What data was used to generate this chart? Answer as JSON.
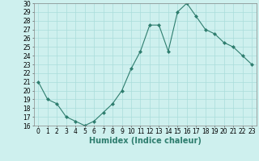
{
  "x": [
    0,
    1,
    2,
    3,
    4,
    5,
    6,
    7,
    8,
    9,
    10,
    11,
    12,
    13,
    14,
    15,
    16,
    17,
    18,
    19,
    20,
    21,
    22,
    23
  ],
  "y": [
    21,
    19,
    18.5,
    17,
    16.5,
    16,
    16.5,
    17.5,
    18.5,
    20,
    22.5,
    24.5,
    27.5,
    27.5,
    24.5,
    29,
    30,
    28.5,
    27,
    26.5,
    25.5,
    25,
    24,
    23
  ],
  "line_color": "#2e7d6e",
  "marker": "D",
  "marker_size": 2,
  "bg_color": "#cef0ee",
  "grid_color": "#aaddda",
  "xlabel": "Humidex (Indice chaleur)",
  "xlim": [
    -0.5,
    23.5
  ],
  "ylim": [
    16,
    30
  ],
  "yticks": [
    16,
    17,
    18,
    19,
    20,
    21,
    22,
    23,
    24,
    25,
    26,
    27,
    28,
    29,
    30
  ],
  "xticks": [
    0,
    1,
    2,
    3,
    4,
    5,
    6,
    7,
    8,
    9,
    10,
    11,
    12,
    13,
    14,
    15,
    16,
    17,
    18,
    19,
    20,
    21,
    22,
    23
  ],
  "xlabel_color": "#2e7d6e",
  "xlabel_fontsize": 7,
  "tick_fontsize": 5.5
}
